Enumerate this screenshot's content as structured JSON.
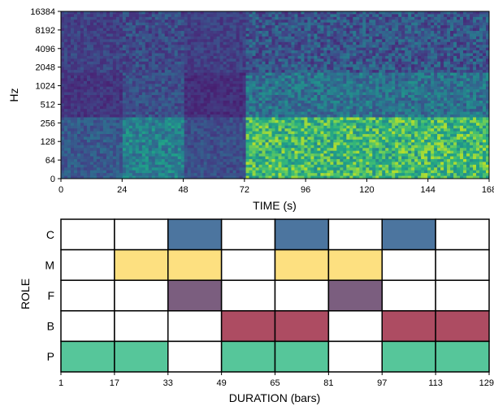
{
  "chart_data": [
    {
      "type": "heatmap",
      "title": "",
      "xlabel": "TIME (s)",
      "ylabel": "Hz",
      "xlim": [
        0,
        168
      ],
      "x_ticks": [
        0,
        24,
        48,
        72,
        96,
        120,
        144,
        168
      ],
      "y_scale": "log2",
      "y_ticks": [
        "0",
        "64",
        "128",
        "256",
        "512",
        "1024",
        "2048",
        "4096",
        "8192",
        "16384"
      ],
      "colormap": "viridis",
      "segments": [
        {
          "start": 0,
          "end": 24,
          "description_level": 0.35
        },
        {
          "start": 24,
          "end": 48,
          "description_level": 0.55
        },
        {
          "start": 48,
          "end": 72,
          "description_level": 0.3
        },
        {
          "start": 72,
          "end": 96,
          "description_level": 0.85
        },
        {
          "start": 96,
          "end": 120,
          "description_level": 0.85
        },
        {
          "start": 120,
          "end": 144,
          "description_level": 0.85
        },
        {
          "start": 144,
          "end": 168,
          "description_level": 0.85
        }
      ]
    },
    {
      "type": "table",
      "title": "",
      "xlabel": "DURATION (bars)",
      "ylabel": "ROLE",
      "x_ticks": [
        "1",
        "17",
        "33",
        "49",
        "65",
        "81",
        "97",
        "113",
        "129"
      ],
      "roles": [
        "C",
        "M",
        "F",
        "B",
        "P"
      ],
      "colors": {
        "C": "#4c759f",
        "M": "#fde080",
        "F": "#7b5e7f",
        "B": "#ad4c62",
        "P": "#56c69a"
      },
      "grid": [
        [
          0,
          0,
          1,
          0,
          1,
          0,
          1,
          0
        ],
        [
          0,
          1,
          1,
          0,
          1,
          1,
          0,
          0
        ],
        [
          0,
          0,
          1,
          0,
          0,
          1,
          0,
          0
        ],
        [
          0,
          0,
          0,
          1,
          1,
          0,
          1,
          1
        ],
        [
          1,
          1,
          0,
          1,
          1,
          0,
          1,
          1
        ]
      ]
    }
  ]
}
